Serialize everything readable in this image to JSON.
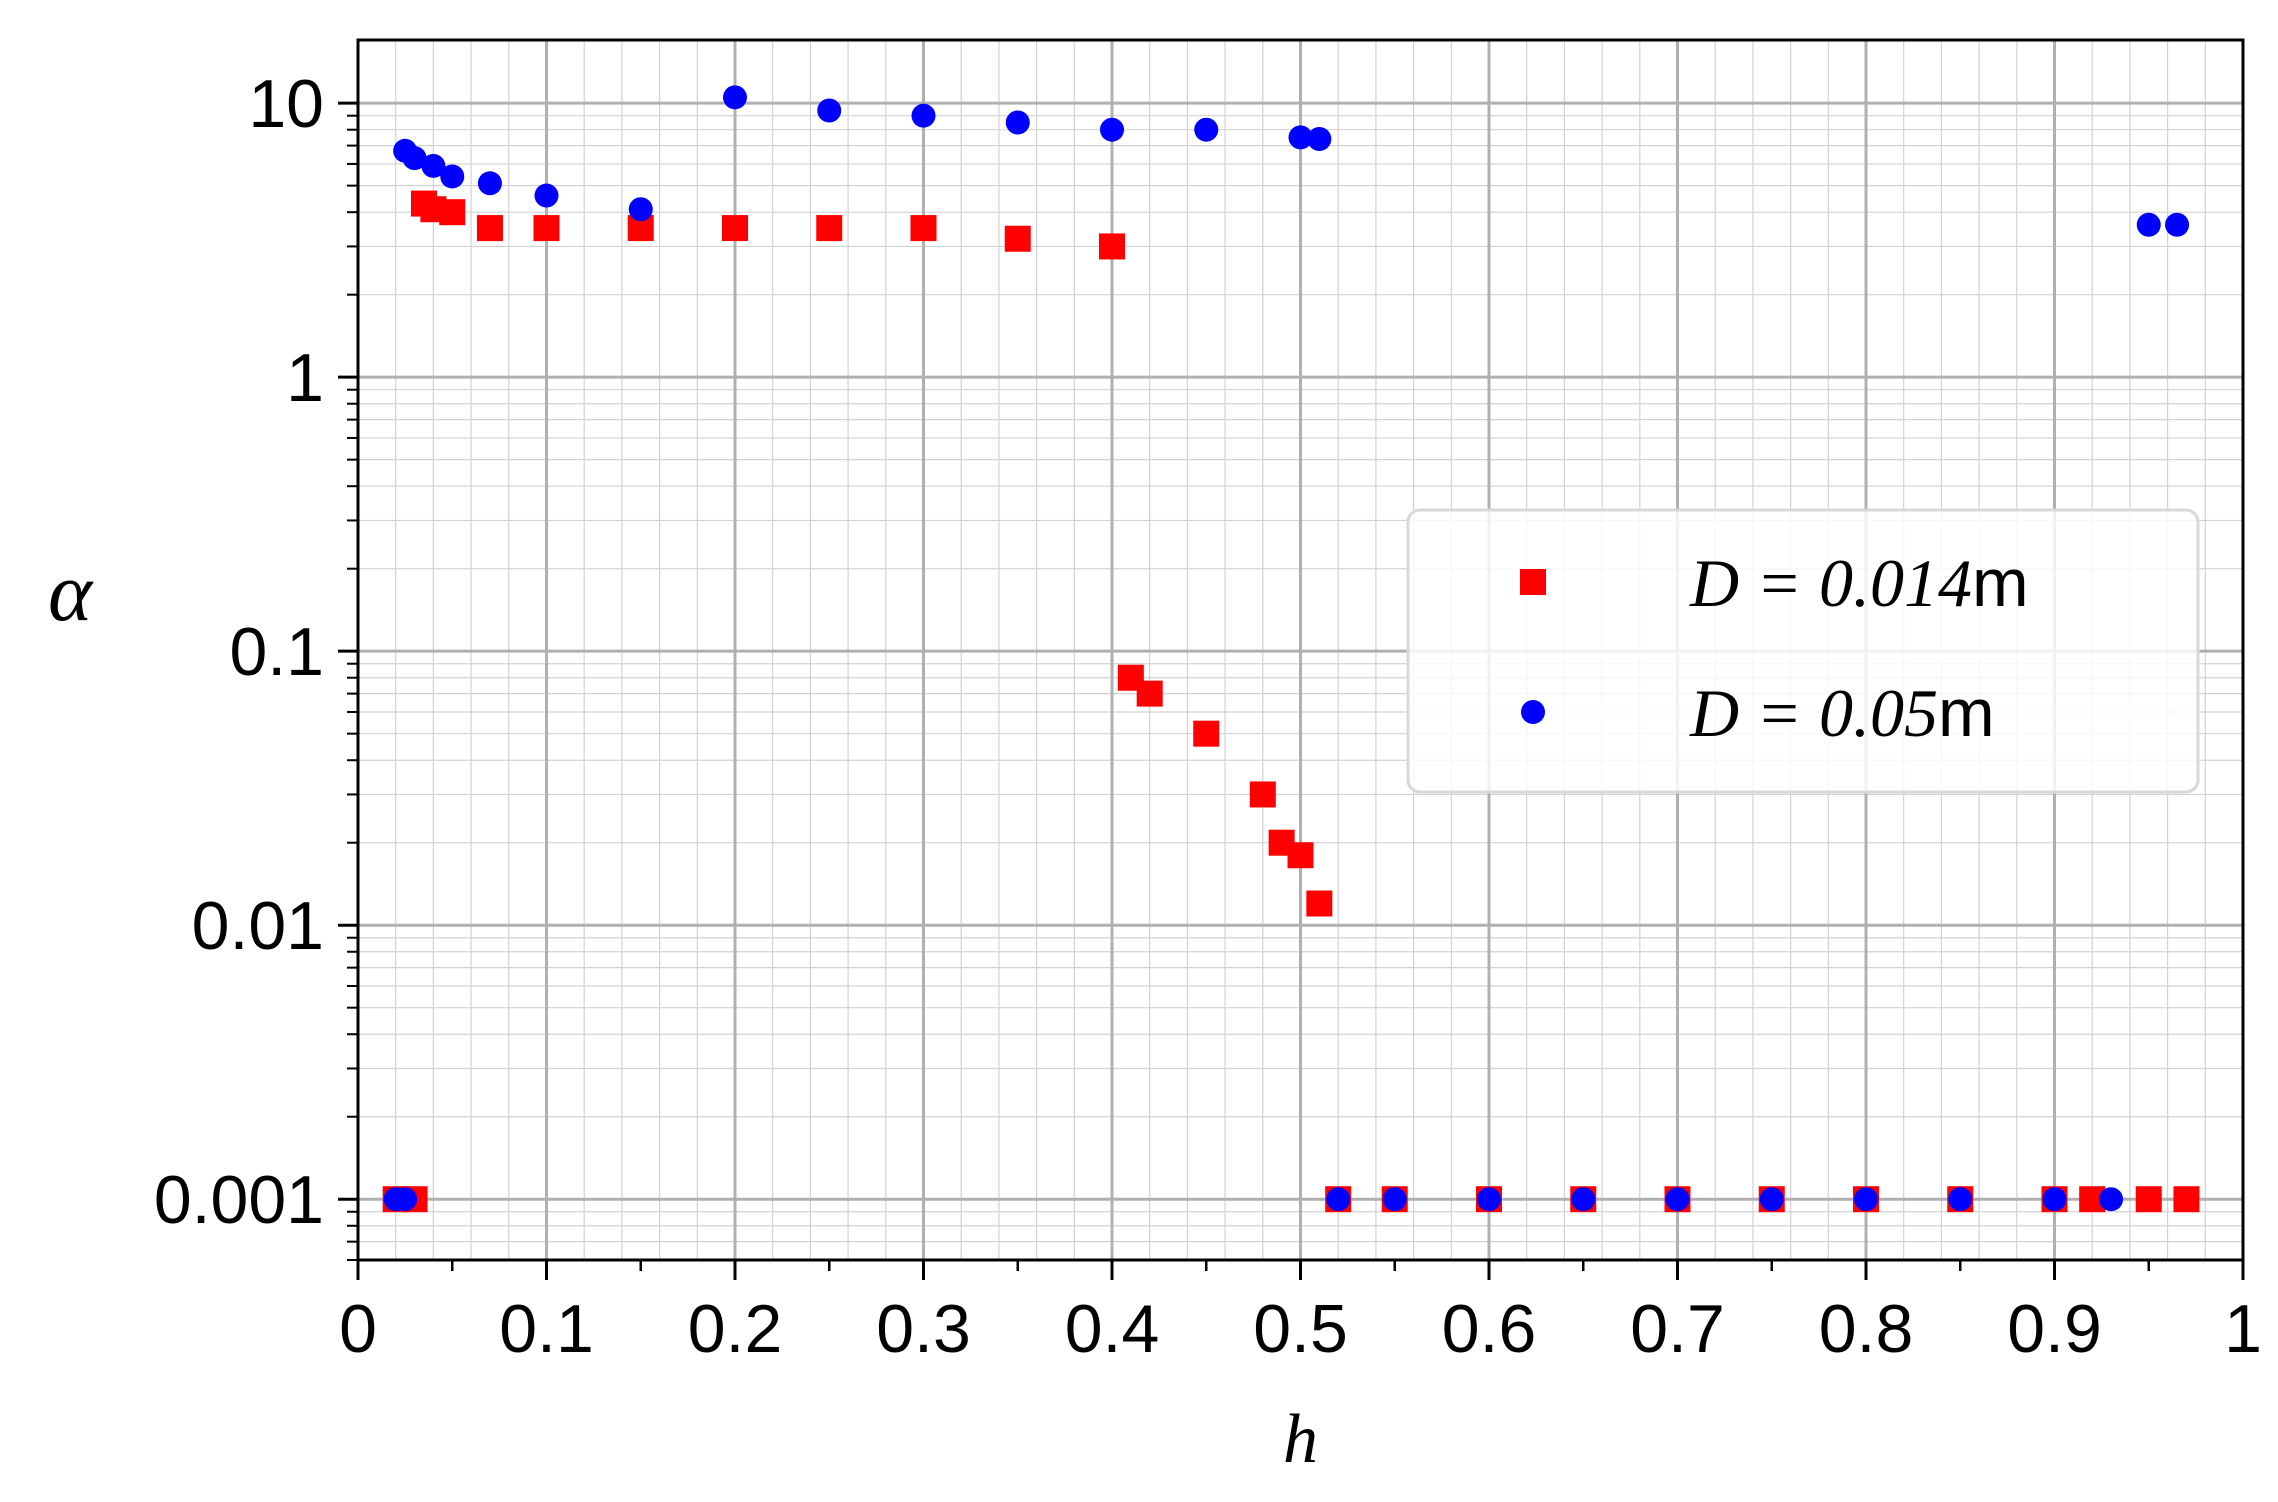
{
  "chart_data": {
    "type": "scatter",
    "title": "",
    "xlabel": "h",
    "ylabel": "α",
    "xlim": [
      0,
      1
    ],
    "ylim": [
      0.0006,
      17
    ],
    "yscale": "log",
    "grid": true,
    "minor_grid": true,
    "legend_position": "center-right",
    "x_ticks": [
      0,
      0.1,
      0.2,
      0.3,
      0.4,
      0.5,
      0.6,
      0.7,
      0.8,
      0.9,
      1
    ],
    "x_tick_labels": [
      "0",
      "0.1",
      "0.2",
      "0.3",
      "0.4",
      "0.5",
      "0.6",
      "0.7",
      "0.8",
      "0.9",
      "1"
    ],
    "y_ticks": [
      0.001,
      0.01,
      0.1,
      1,
      10
    ],
    "y_tick_labels": [
      "0.001",
      "0.01",
      "0.1",
      "1",
      "10"
    ],
    "series": [
      {
        "name": "D = 0.014m",
        "label_prefix": "D = 0.014",
        "label_unit": "m",
        "marker": "square",
        "color": "#ff0000",
        "x": [
          0.02,
          0.03,
          0.035,
          0.04,
          0.05,
          0.07,
          0.1,
          0.15,
          0.2,
          0.25,
          0.3,
          0.35,
          0.4,
          0.41,
          0.42,
          0.45,
          0.48,
          0.49,
          0.5,
          0.51,
          0.52,
          0.55,
          0.6,
          0.65,
          0.7,
          0.75,
          0.8,
          0.85,
          0.9,
          0.92,
          0.95,
          0.97
        ],
        "y": [
          0.001,
          0.001,
          4.3,
          4.1,
          4.0,
          3.5,
          3.5,
          3.5,
          3.5,
          3.5,
          3.5,
          3.2,
          3.0,
          0.08,
          0.07,
          0.05,
          0.03,
          0.02,
          0.018,
          0.012,
          0.001,
          0.001,
          0.001,
          0.001,
          0.001,
          0.001,
          0.001,
          0.001,
          0.001,
          0.001,
          0.001,
          0.001
        ]
      },
      {
        "name": "D = 0.05m",
        "label_prefix": "D = 0.05",
        "label_unit": "m",
        "marker": "circle",
        "color": "#0000ff",
        "x": [
          0.02,
          0.025,
          0.025,
          0.03,
          0.04,
          0.05,
          0.07,
          0.1,
          0.15,
          0.2,
          0.25,
          0.3,
          0.35,
          0.4,
          0.45,
          0.5,
          0.51,
          0.52,
          0.55,
          0.6,
          0.65,
          0.7,
          0.75,
          0.8,
          0.85,
          0.9,
          0.93,
          0.95,
          0.965
        ],
        "y": [
          0.001,
          0.001,
          6.7,
          6.3,
          5.9,
          5.4,
          5.1,
          4.6,
          4.1,
          10.5,
          9.4,
          9.0,
          8.5,
          8.0,
          8.0,
          7.5,
          7.4,
          0.001,
          0.001,
          0.001,
          0.001,
          0.001,
          0.001,
          0.001,
          0.001,
          0.001,
          0.001,
          3.6,
          3.6
        ]
      }
    ]
  }
}
